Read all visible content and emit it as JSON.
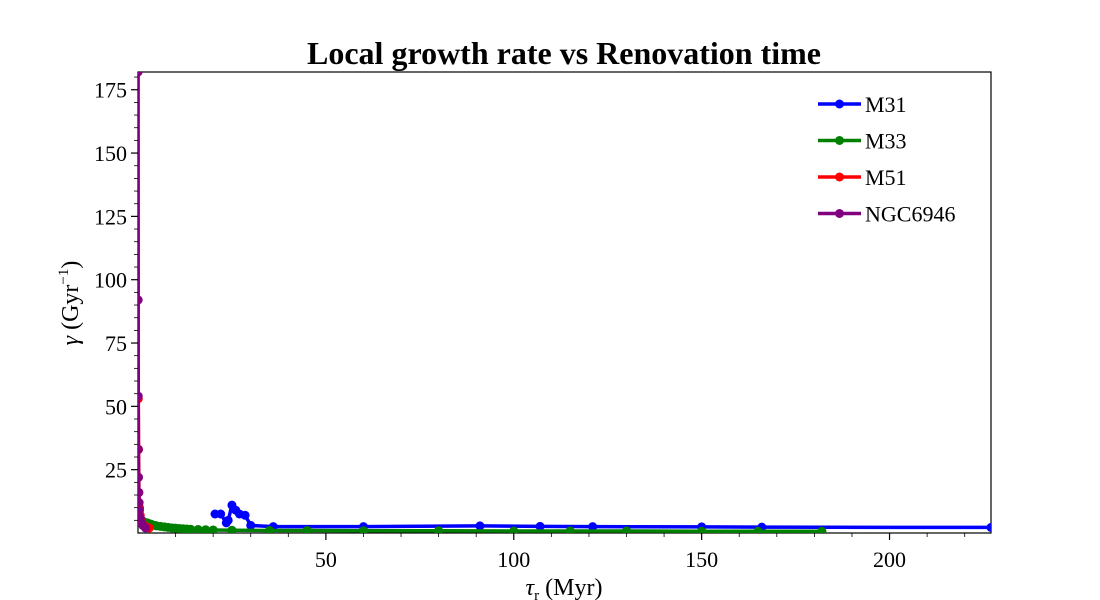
{
  "chart_data": {
    "type": "line",
    "title": "Local growth rate vs Renovation time",
    "xlabel": {
      "sym": "τ",
      "sub": "r",
      "unit": " (Myr)"
    },
    "ylabel": {
      "sym": "γ",
      "pre": " (Gyr",
      "sup": "−1",
      "post": ")"
    },
    "xlim": [
      0,
      227
    ],
    "ylim": [
      0,
      182
    ],
    "xticks": [
      50,
      100,
      150,
      200
    ],
    "yticks": [
      25,
      50,
      75,
      100,
      125,
      150,
      175
    ],
    "legend_position": "upper-right",
    "series": [
      {
        "name": "M31",
        "color": "#0000ff",
        "x": [
          20.5,
          22,
          23.5,
          24,
          25,
          26,
          27,
          28.5,
          30,
          36,
          60,
          91,
          107,
          121,
          150,
          166,
          227
        ],
        "y": [
          7.5,
          7.5,
          4,
          5,
          11,
          9,
          7.5,
          7,
          3,
          2.5,
          2.5,
          2.8,
          2.6,
          2.5,
          2.4,
          2.3,
          2.2
        ]
      },
      {
        "name": "M33",
        "color": "#008000",
        "x": [
          0.5,
          1,
          1.5,
          2.5,
          3.5,
          4.5,
          5,
          6,
          7,
          8,
          9,
          10,
          11,
          12,
          13,
          14,
          16,
          18,
          20,
          25,
          35,
          45,
          60,
          80,
          100,
          115,
          130,
          150,
          165,
          182
        ],
        "y": [
          6,
          5,
          4.5,
          4,
          3.5,
          3,
          2.8,
          2.6,
          2.4,
          2.2,
          2,
          1.9,
          1.8,
          1.7,
          1.6,
          1.5,
          1.4,
          1.3,
          1.2,
          1.1,
          1.0,
          1.0,
          0.9,
          0.9,
          0.8,
          0.8,
          0.8,
          0.7,
          0.7,
          0.7
        ]
      },
      {
        "name": "M51",
        "color": "#ff0000",
        "x": [
          0.08,
          0.15,
          0.25,
          0.4,
          0.6,
          0.8,
          1.0,
          1.3,
          1.6,
          2.0,
          2.5,
          3.0
        ],
        "y": [
          53,
          33,
          16,
          10,
          7,
          5,
          4,
          3.5,
          3,
          2.6,
          2.2,
          2.0
        ]
      },
      {
        "name": "NGC6946",
        "color": "#800080",
        "x": [
          0.03,
          0.05,
          0.07,
          0.1,
          0.15,
          0.2,
          0.3,
          0.4,
          0.6,
          0.9,
          1.3,
          2.0
        ],
        "y": [
          182,
          92,
          54,
          33,
          22,
          16,
          12,
          9,
          6,
          4,
          3,
          2
        ]
      }
    ]
  }
}
